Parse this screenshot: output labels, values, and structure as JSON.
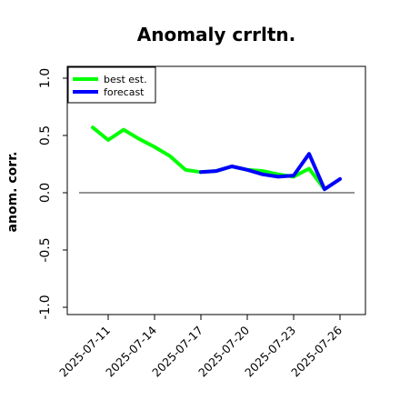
{
  "chart_data": {
    "type": "line",
    "title": "Anomaly crrltn.",
    "xlabel": "",
    "ylabel": "anom. corr.",
    "ylim": [
      -1.0,
      1.0
    ],
    "yticks": [
      "-1.0",
      "-0.5",
      "0.0",
      "0.5",
      "1.0"
    ],
    "x_tick_labels": [
      "2025-07-11",
      "2025-07-14",
      "2025-07-17",
      "2025-07-20",
      "2025-07-23",
      "2025-07-26"
    ],
    "highlighted_tick": "2025-07-17",
    "highlight_color": "#228b22",
    "reference_line": 0.0,
    "grid": false,
    "legend_position": "top-left",
    "series": [
      {
        "name": "best est.",
        "color": "#00ff00",
        "x": [
          "2025-07-10",
          "2025-07-11",
          "2025-07-12",
          "2025-07-13",
          "2025-07-14",
          "2025-07-15",
          "2025-07-16",
          "2025-07-17",
          "2025-07-18",
          "2025-07-19",
          "2025-07-20",
          "2025-07-21",
          "2025-07-22",
          "2025-07-23",
          "2025-07-24",
          "2025-07-25"
        ],
        "values": [
          0.57,
          0.46,
          0.55,
          0.47,
          0.4,
          0.32,
          0.2,
          0.18,
          0.19,
          0.23,
          0.2,
          0.19,
          0.16,
          0.14,
          0.21,
          0.03
        ]
      },
      {
        "name": "forecast",
        "color": "#0000ff",
        "x": [
          "2025-07-17",
          "2025-07-18",
          "2025-07-19",
          "2025-07-20",
          "2025-07-21",
          "2025-07-22",
          "2025-07-23",
          "2025-07-24",
          "2025-07-25",
          "2025-07-26"
        ],
        "values": [
          0.18,
          0.19,
          0.23,
          0.2,
          0.16,
          0.14,
          0.15,
          0.34,
          0.03,
          0.12
        ]
      }
    ]
  }
}
